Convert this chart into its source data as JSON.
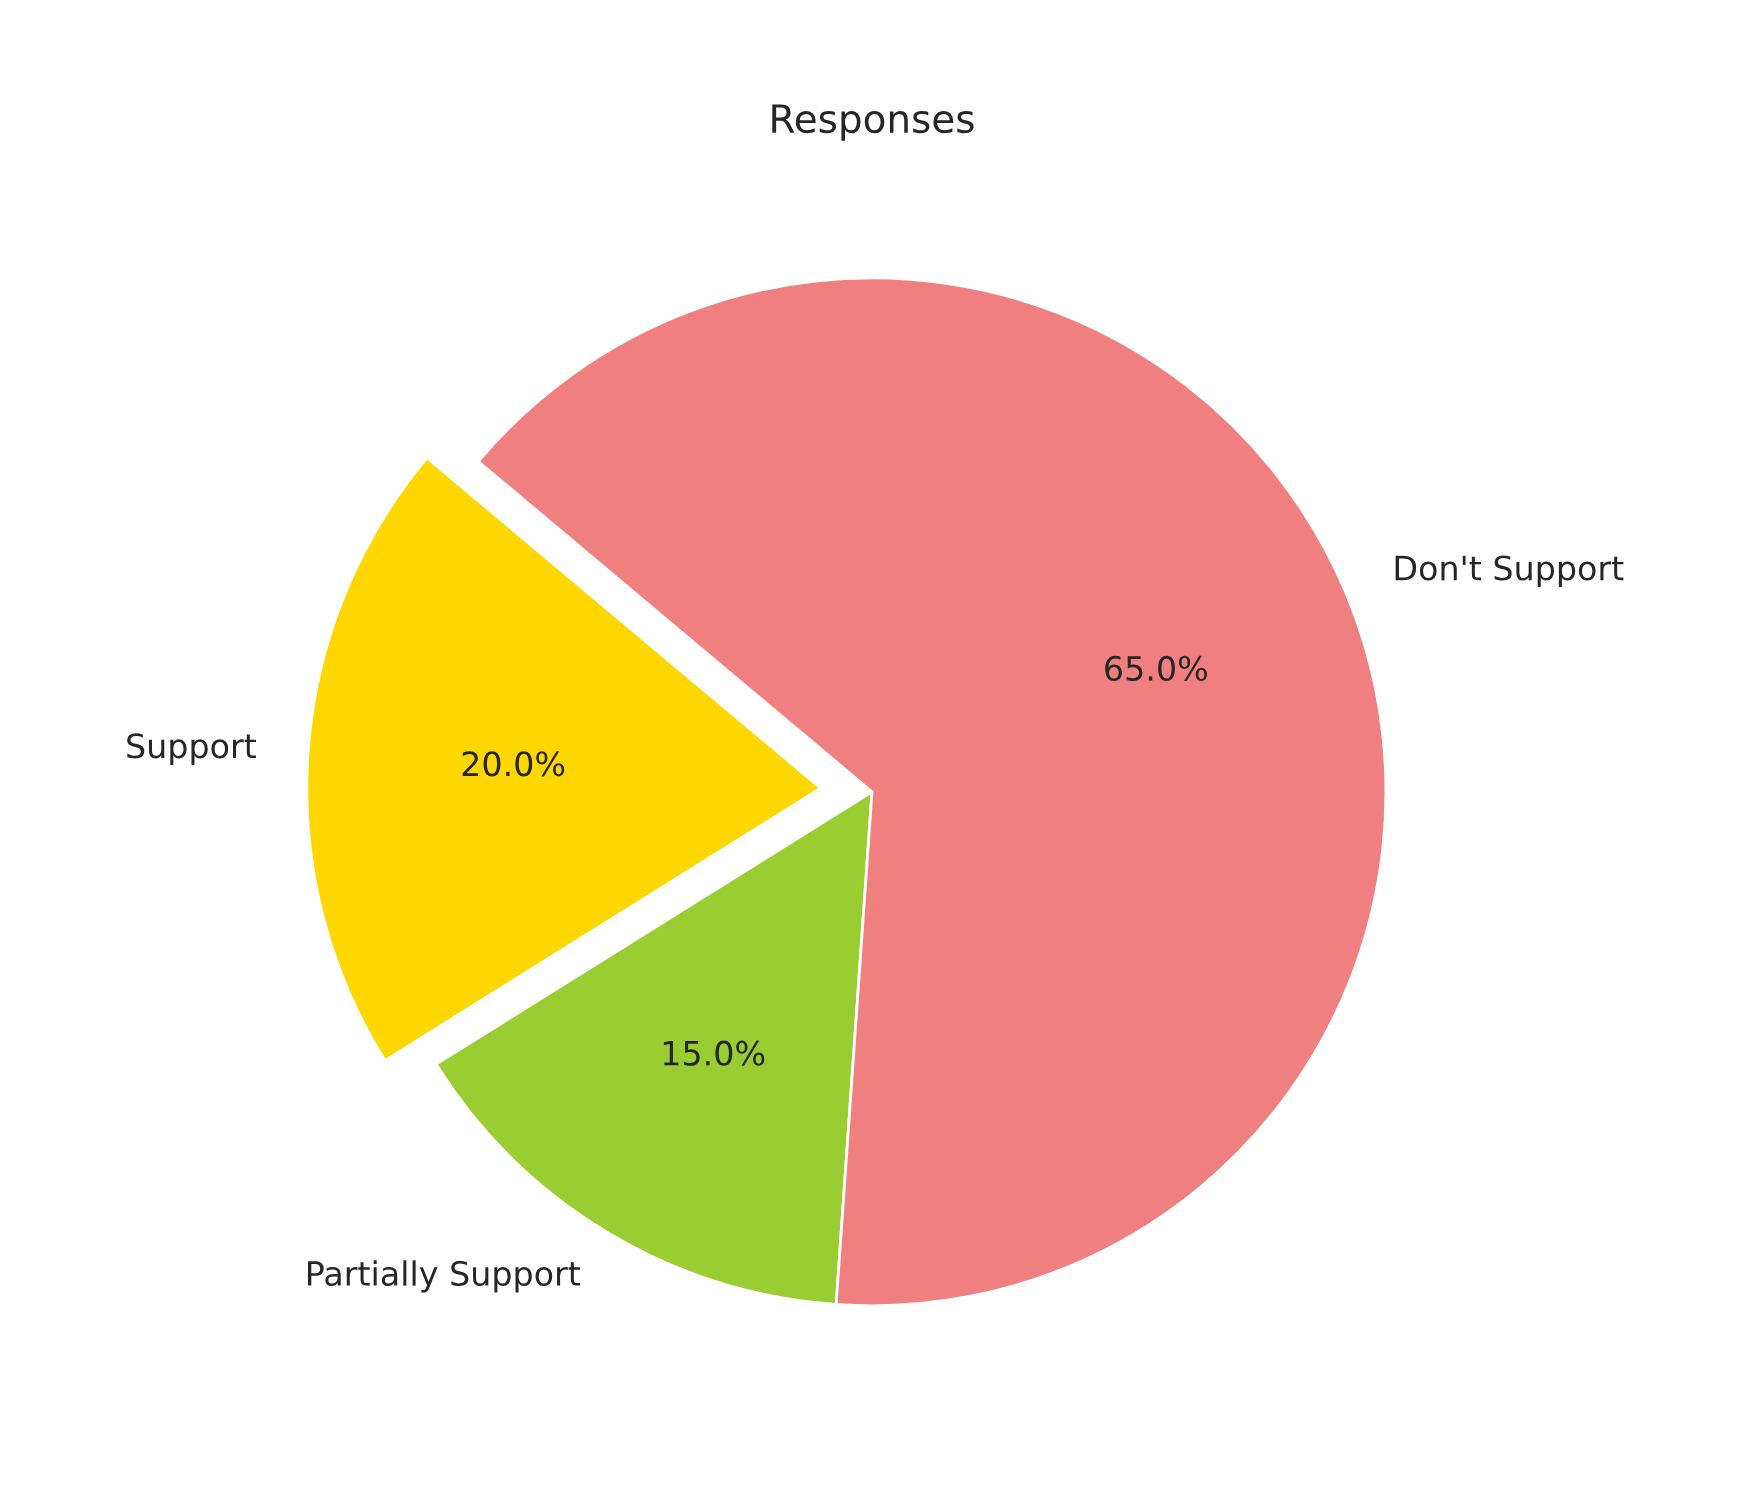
{
  "chart_data": {
    "type": "pie",
    "title": "Responses",
    "categories": [
      "Support",
      "Partially Support",
      "Don't Support"
    ],
    "values": [
      20,
      15,
      65
    ],
    "colors": [
      "#ffd700",
      "#9acd32",
      "#f08080"
    ],
    "value_labels": [
      "20.0%",
      "15.0%",
      "65.0%"
    ]
  }
}
